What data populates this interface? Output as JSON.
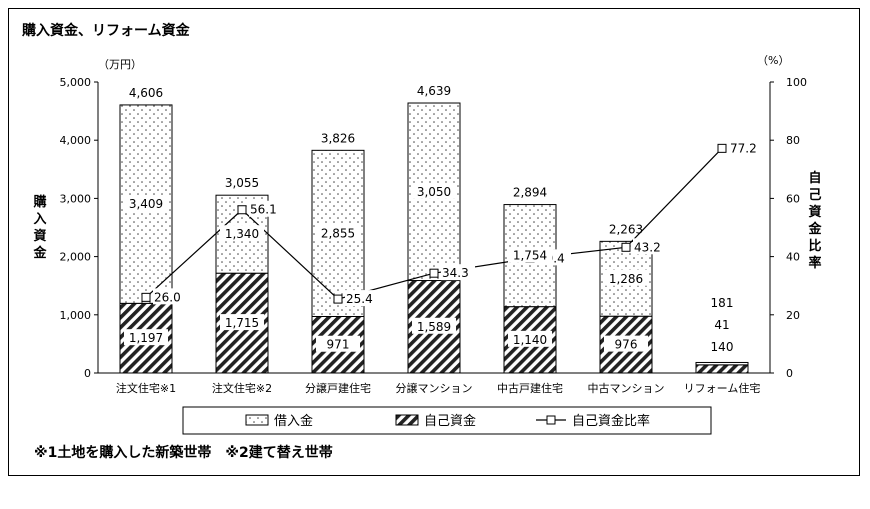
{
  "page": {
    "title": "購入資金、リフォーム資金",
    "footnote": "※1土地を購入した新築世帯　※2建て替え世帯"
  },
  "chart_data": {
    "type": "bar",
    "stacked": true,
    "categories": [
      "注文住宅※1",
      "注文住宅※2",
      "分譲戸建住宅",
      "分譲マンション",
      "中古戸建住宅",
      "中古マンション",
      "リフォーム住宅"
    ],
    "series": [
      {
        "name": "借入金",
        "values": [
          3409,
          1340,
          2855,
          3050,
          1754,
          1286,
          41
        ],
        "labels": [
          "3,409",
          "1,340",
          "2,855",
          "3,050",
          "1,754",
          "1,286",
          "41"
        ]
      },
      {
        "name": "自己資金",
        "values": [
          1197,
          1715,
          971,
          1589,
          1140,
          976,
          140
        ],
        "labels": [
          "1,197",
          "1,715",
          "971",
          "1,589",
          "1,140",
          "976",
          "140"
        ]
      }
    ],
    "totals": [
      4606,
      3055,
      3826,
      4639,
      2894,
      2263,
      181
    ],
    "total_labels": [
      "4,606",
      "3,055",
      "3,826",
      "4,639",
      "2,894",
      "2,263",
      "181"
    ],
    "line": {
      "name": "自己資金比率",
      "values": [
        26.0,
        56.1,
        25.4,
        34.3,
        39.4,
        43.2,
        77.2
      ],
      "labels": [
        "26.0",
        "56.1",
        "25.4",
        "34.3",
        "39.4",
        "43.2",
        "77.2"
      ]
    },
    "y_left": {
      "label": "購入資金",
      "unit": "（万円）",
      "ylim": [
        0,
        5000
      ],
      "ticks": [
        "0",
        "1,000",
        "2,000",
        "3,000",
        "4,000",
        "5,000"
      ],
      "tick_values": [
        0,
        1000,
        2000,
        3000,
        4000,
        5000
      ]
    },
    "y_right": {
      "label": "自己資金比率",
      "unit": "（%）",
      "ylim": [
        0,
        100
      ],
      "ticks": [
        "0",
        "20",
        "40",
        "60",
        "80",
        "100"
      ],
      "tick_values": [
        0,
        20,
        40,
        60,
        80,
        100
      ]
    },
    "legend": {
      "position": "bottom",
      "items": [
        "借入金",
        "自己資金",
        "自己資金比率"
      ]
    },
    "grid": false
  }
}
